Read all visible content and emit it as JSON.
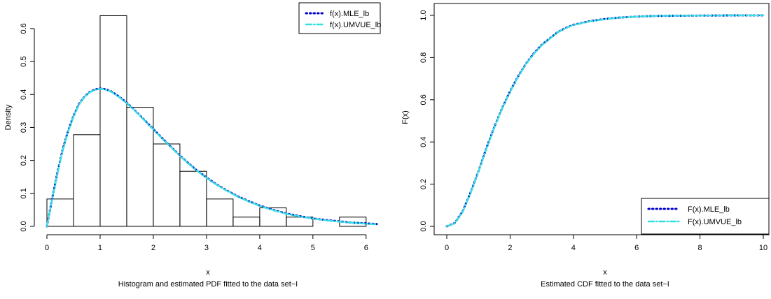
{
  "chart_data": [
    {
      "type": "bar",
      "subtype": "histogram-with-density-curves",
      "xlabel": "x",
      "ylabel": "Density",
      "caption": "Histogram and estimated PDF fitted to the data set−I",
      "xlim": [
        0,
        6.2
      ],
      "ylim": [
        0,
        0.64
      ],
      "x_ticks": [
        "0",
        "1",
        "2",
        "3",
        "4",
        "5",
        "6"
      ],
      "y_ticks": [
        "0.0",
        "0.1",
        "0.2",
        "0.3",
        "0.4",
        "0.5",
        "0.6"
      ],
      "bins": [
        {
          "from": 0.0,
          "to": 0.5,
          "density": 0.083
        },
        {
          "from": 0.5,
          "to": 1.0,
          "density": 0.278
        },
        {
          "from": 1.0,
          "to": 1.5,
          "density": 0.639
        },
        {
          "from": 1.5,
          "to": 2.0,
          "density": 0.361
        },
        {
          "from": 2.0,
          "to": 2.5,
          "density": 0.25
        },
        {
          "from": 2.5,
          "to": 3.0,
          "density": 0.167
        },
        {
          "from": 3.0,
          "to": 3.5,
          "density": 0.083
        },
        {
          "from": 3.5,
          "to": 4.0,
          "density": 0.028
        },
        {
          "from": 4.0,
          "to": 4.5,
          "density": 0.056
        },
        {
          "from": 4.5,
          "to": 5.0,
          "density": 0.028
        },
        {
          "from": 5.0,
          "to": 5.5,
          "density": 0.0
        },
        {
          "from": 5.5,
          "to": 6.0,
          "density": 0.028
        }
      ],
      "series": [
        {
          "name": "f(x).MLE_lb",
          "color": "#0000cc",
          "style": "dotted",
          "x": [
            0,
            0.1,
            0.2,
            0.3,
            0.4,
            0.5,
            0.6,
            0.7,
            0.8,
            0.9,
            1.0,
            1.1,
            1.2,
            1.3,
            1.4,
            1.5,
            1.6,
            1.8,
            2.0,
            2.2,
            2.4,
            2.6,
            2.8,
            3.0,
            3.2,
            3.4,
            3.6,
            3.8,
            4.0,
            4.25,
            4.5,
            4.75,
            5.0,
            5.25,
            5.5,
            5.75,
            6.0,
            6.2
          ],
          "y": [
            0,
            0.085,
            0.165,
            0.235,
            0.29,
            0.335,
            0.37,
            0.392,
            0.407,
            0.415,
            0.418,
            0.416,
            0.41,
            0.4,
            0.388,
            0.375,
            0.36,
            0.328,
            0.295,
            0.262,
            0.23,
            0.2,
            0.172,
            0.148,
            0.126,
            0.107,
            0.09,
            0.076,
            0.063,
            0.05,
            0.039,
            0.031,
            0.024,
            0.019,
            0.015,
            0.011,
            0.009,
            0.007
          ]
        },
        {
          "name": "f(x).UMVUE_lb",
          "color": "#33e0e0",
          "style": "dotdash",
          "x": [
            0,
            0.1,
            0.2,
            0.3,
            0.4,
            0.5,
            0.6,
            0.7,
            0.8,
            0.9,
            1.0,
            1.1,
            1.2,
            1.3,
            1.4,
            1.5,
            1.6,
            1.8,
            2.0,
            2.2,
            2.4,
            2.6,
            2.8,
            3.0,
            3.2,
            3.4,
            3.6,
            3.8,
            4.0,
            4.25,
            4.5,
            4.75,
            5.0,
            5.25,
            5.5,
            5.75,
            6.0,
            6.2
          ],
          "y": [
            0,
            0.083,
            0.162,
            0.232,
            0.288,
            0.333,
            0.368,
            0.391,
            0.406,
            0.414,
            0.417,
            0.415,
            0.409,
            0.399,
            0.387,
            0.374,
            0.359,
            0.327,
            0.294,
            0.261,
            0.229,
            0.199,
            0.171,
            0.147,
            0.125,
            0.106,
            0.089,
            0.075,
            0.062,
            0.049,
            0.038,
            0.03,
            0.024,
            0.018,
            0.014,
            0.011,
            0.008,
            0.006
          ]
        }
      ],
      "legend_position": "top-right"
    },
    {
      "type": "line",
      "xlabel": "x",
      "ylabel": "F(x)",
      "caption": "Estimated CDF fitted to the data set−I",
      "xlim": [
        0,
        10
      ],
      "ylim": [
        0,
        1
      ],
      "x_ticks": [
        "0",
        "2",
        "4",
        "6",
        "8",
        "10"
      ],
      "y_ticks": [
        "0.0",
        "0.2",
        "0.4",
        "0.6",
        "0.8",
        "1.0"
      ],
      "series": [
        {
          "name": "F(x).MLE_lb",
          "color": "#0000cc",
          "style": "dotted",
          "x": [
            0,
            0.25,
            0.5,
            0.75,
            1.0,
            1.25,
            1.5,
            1.75,
            2.0,
            2.25,
            2.5,
            2.75,
            3.0,
            3.25,
            3.5,
            3.75,
            4.0,
            4.5,
            5.0,
            5.5,
            6.0,
            6.5,
            7.0,
            8.0,
            9.0,
            10.0
          ],
          "y": [
            0,
            0.015,
            0.07,
            0.16,
            0.26,
            0.37,
            0.47,
            0.56,
            0.64,
            0.71,
            0.77,
            0.82,
            0.86,
            0.89,
            0.92,
            0.94,
            0.955,
            0.972,
            0.983,
            0.99,
            0.994,
            0.997,
            0.998,
            0.999,
            1.0,
            1.0
          ]
        },
        {
          "name": "F(x).UMVUE_lb",
          "color": "#33e0e0",
          "style": "dotdash",
          "x": [
            0,
            0.25,
            0.5,
            0.75,
            1.0,
            1.25,
            1.5,
            1.75,
            2.0,
            2.25,
            2.5,
            2.75,
            3.0,
            3.25,
            3.5,
            3.75,
            4.0,
            4.5,
            5.0,
            5.5,
            6.0,
            6.5,
            7.0,
            8.0,
            9.0,
            10.0
          ],
          "y": [
            0,
            0.014,
            0.068,
            0.158,
            0.258,
            0.368,
            0.468,
            0.558,
            0.638,
            0.708,
            0.768,
            0.818,
            0.858,
            0.889,
            0.919,
            0.939,
            0.954,
            0.971,
            0.982,
            0.99,
            0.994,
            0.997,
            0.998,
            0.999,
            1.0,
            1.0
          ]
        }
      ],
      "legend_position": "bottom-right"
    }
  ]
}
